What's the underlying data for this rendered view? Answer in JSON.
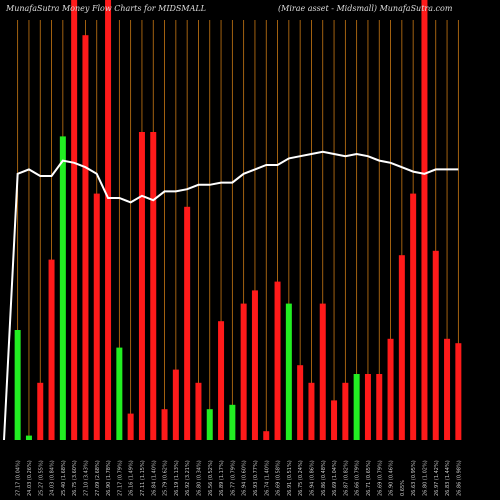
{
  "header": {
    "left": "MunafaSutra Money Flow Charts for MIDSMALL",
    "right": "(Mirae asset - Midsmall) MunafaSutra.com"
  },
  "colors": {
    "up": "#22ee22",
    "down": "#ff1a1a",
    "line": "#ffffff",
    "grid": "#c87814",
    "background": "#000000"
  },
  "chart_data": {
    "type": "bar",
    "grid": "vertical",
    "ylim": [
      0,
      100
    ],
    "series": [
      {
        "name": "money-flow-bars",
        "colors": [
          "green",
          "green",
          "red",
          "red",
          "green",
          "red",
          "red",
          "red",
          "red",
          "green",
          "red",
          "red",
          "red",
          "red",
          "red",
          "red",
          "red",
          "green",
          "red",
          "green",
          "red",
          "red",
          "red",
          "red",
          "green",
          "red",
          "red",
          "red",
          "red",
          "red",
          "green",
          "red",
          "red",
          "red",
          "red",
          "red",
          "red",
          "red",
          "red",
          "red"
        ],
        "values": [
          25,
          1,
          13,
          41,
          69,
          100,
          92,
          56,
          100,
          21,
          6,
          70,
          70,
          7,
          16,
          53,
          13,
          7,
          27,
          8,
          31,
          34,
          2,
          36,
          31,
          17,
          13,
          31,
          9,
          13,
          15,
          15,
          15,
          23,
          42,
          56,
          100,
          43,
          23,
          22
        ]
      },
      {
        "name": "price-line",
        "values": [
          60.5,
          61.5,
          60,
          60,
          63.5,
          63,
          62,
          60.5,
          55,
          55,
          54,
          55.5,
          54.5,
          56.5,
          56.5,
          57,
          58,
          58,
          58.5,
          58.5,
          60.5,
          61.5,
          62.5,
          62.5,
          64,
          64.5,
          65,
          65.5,
          65,
          64.5,
          65,
          64.5,
          63.5,
          63,
          62,
          61,
          60.5,
          61.5,
          61.5,
          61.5
        ]
      }
    ],
    "x_labels": [
      "27.17 (0.04%)",
      "24.03 (0.26%)",
      "25.27 (0.55%)",
      "24.03 (0.84%)",
      "25.40 (1.68%)",
      "26.75 (3.60%)",
      "27.10 (3.43%)",
      "27.09 (2.68%)",
      "26.90 (1.78%)",
      "27.17 (0.79%)",
      "26.16 (1.49%)",
      "27.11 (1.15%)",
      "26.84 (1.40%)",
      "25.79 (0.62%)",
      "26.19 (1.13%)",
      "26.92 (3.21%)",
      "26.80 (0.34%)",
      "26.56 (0.52%)",
      "26.89 (1.17%)",
      "26.77 (0.79%)",
      "26.94 (0.60%)",
      "26.93 (0.77%)",
      "26.74 (1.40%)",
      "26.69 (0.58%)",
      "26.91 (0.51%)",
      "26.75 (0.24%)",
      "26.94 (0.86%)",
      "26.86 (0.48%)",
      "26.69 (1.04%)",
      "26.87 (0.82%)",
      "26.66 (0.79%)",
      "26.71 (0.65%)",
      "26.69 (0.79%)",
      "26.90 (0.46%)",
      "0.65%",
      "26.63 (0.95%)",
      "26.80 (1.02%)",
      "26.97 (1.42%)",
      "26.83 (1.44%)",
      "26.86 (0.98%)"
    ]
  }
}
